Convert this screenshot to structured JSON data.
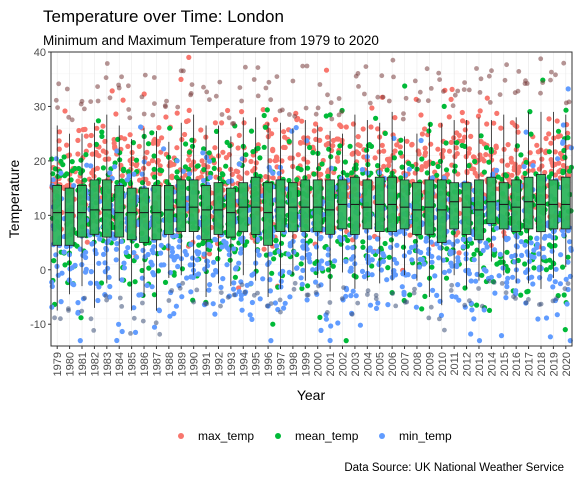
{
  "chart_data": {
    "type": "boxplot+jitter",
    "title": "Temperature over Time: London",
    "subtitle": "Minimum and Maximum Temperature from 1979 to 2020",
    "xlabel": "Year",
    "ylabel": "Temperature",
    "caption": "Data Source: UK National Weather Service",
    "ylim": [
      -14,
      40
    ],
    "y_ticks": [
      -10,
      0,
      10,
      20,
      30,
      40
    ],
    "grid": true,
    "legend_position": "bottom",
    "years": [
      "1979",
      "1980",
      "1981",
      "1982",
      "1983",
      "1984",
      "1985",
      "1986",
      "1987",
      "1988",
      "1989",
      "1990",
      "1991",
      "1992",
      "1993",
      "1994",
      "1995",
      "1996",
      "1997",
      "1998",
      "1999",
      "2000",
      "2001",
      "2002",
      "2003",
      "2004",
      "2005",
      "2006",
      "2007",
      "2008",
      "2009",
      "2010",
      "2011",
      "2012",
      "2013",
      "2014",
      "2015",
      "2016",
      "2017",
      "2018",
      "2019",
      "2020"
    ],
    "boxplot": {
      "description_variable": "mean_temp",
      "q1": [
        4.5,
        4.5,
        6.0,
        6.5,
        6.0,
        6.0,
        5.5,
        5.0,
        5.5,
        6.5,
        7.0,
        7.0,
        5.5,
        6.5,
        6.0,
        7.0,
        6.5,
        4.5,
        7.0,
        7.0,
        7.0,
        7.0,
        6.5,
        7.5,
        6.5,
        7.5,
        7.0,
        7.0,
        7.5,
        6.5,
        6.5,
        5.0,
        7.5,
        6.5,
        5.5,
        8.5,
        7.5,
        7.0,
        7.5,
        7.0,
        7.5,
        7.5
      ],
      "median": [
        10.5,
        10.5,
        10.5,
        11.0,
        11.0,
        10.5,
        10.5,
        10.5,
        10.5,
        11.0,
        11.5,
        11.5,
        11.0,
        11.0,
        10.5,
        11.5,
        11.5,
        10.5,
        11.5,
        11.5,
        11.5,
        11.5,
        11.0,
        12.0,
        12.0,
        11.5,
        12.0,
        12.0,
        11.5,
        11.0,
        11.5,
        11.0,
        12.5,
        11.5,
        11.0,
        12.5,
        12.0,
        11.5,
        12.5,
        12.0,
        12.0,
        12.0
      ],
      "q3": [
        15.5,
        15.0,
        15.5,
        16.5,
        16.5,
        15.5,
        15.0,
        15.0,
        15.5,
        15.5,
        16.5,
        16.5,
        15.5,
        16.0,
        15.0,
        16.0,
        17.0,
        16.0,
        16.5,
        16.0,
        16.5,
        16.5,
        16.5,
        16.5,
        17.0,
        16.5,
        17.0,
        17.0,
        16.5,
        16.0,
        16.5,
        16.5,
        16.0,
        16.0,
        16.5,
        17.0,
        16.0,
        16.5,
        17.0,
        17.5,
        16.5,
        17.0
      ],
      "whisker_low": [
        -7.5,
        -4.5,
        -3.0,
        -7.0,
        -2.5,
        -2.0,
        -7.5,
        -5.0,
        -7.5,
        -1.5,
        -1.0,
        -1.0,
        -5.0,
        -2.5,
        -3.0,
        -1.0,
        -2.0,
        -5.0,
        -3.5,
        -1.0,
        -2.0,
        -1.5,
        -4.0,
        -0.5,
        -3.5,
        -2.0,
        -2.5,
        -2.0,
        -1.0,
        -2.0,
        -5.0,
        -6.5,
        -1.0,
        -3.5,
        -2.0,
        1.5,
        -1.0,
        -2.5,
        -2.5,
        -3.5,
        -1.5,
        0.5
      ],
      "whisker_high": [
        26.5,
        25.0,
        25.0,
        27.0,
        28.5,
        26.5,
        24.0,
        26.0,
        25.5,
        23.5,
        27.0,
        28.5,
        26.5,
        26.5,
        24.5,
        28.0,
        28.0,
        27.0,
        27.0,
        26.0,
        27.5,
        26.5,
        25.5,
        25.0,
        28.5,
        27.5,
        27.0,
        29.0,
        24.5,
        25.0,
        27.0,
        27.0,
        27.5,
        27.5,
        28.0,
        27.5,
        28.5,
        28.0,
        29.0,
        29.0,
        29.0,
        28.5
      ]
    },
    "series": [
      {
        "name": "max_temp",
        "color": "#F8766D",
        "band": [
          5,
          29
        ]
      },
      {
        "name": "mean_temp",
        "color": "#00BA38",
        "band": [
          -3,
          25
        ]
      },
      {
        "name": "min_temp",
        "color": "#619CFF",
        "band": [
          -9,
          20
        ]
      }
    ]
  },
  "colors": {
    "panel_bg": "#ffffff",
    "grid_major": "#ebebeb",
    "grid_minor": "#f5f5f5",
    "box_fill": "#2DB55D",
    "box_stroke": "#1a1a1a",
    "panel_border": "#333333"
  }
}
